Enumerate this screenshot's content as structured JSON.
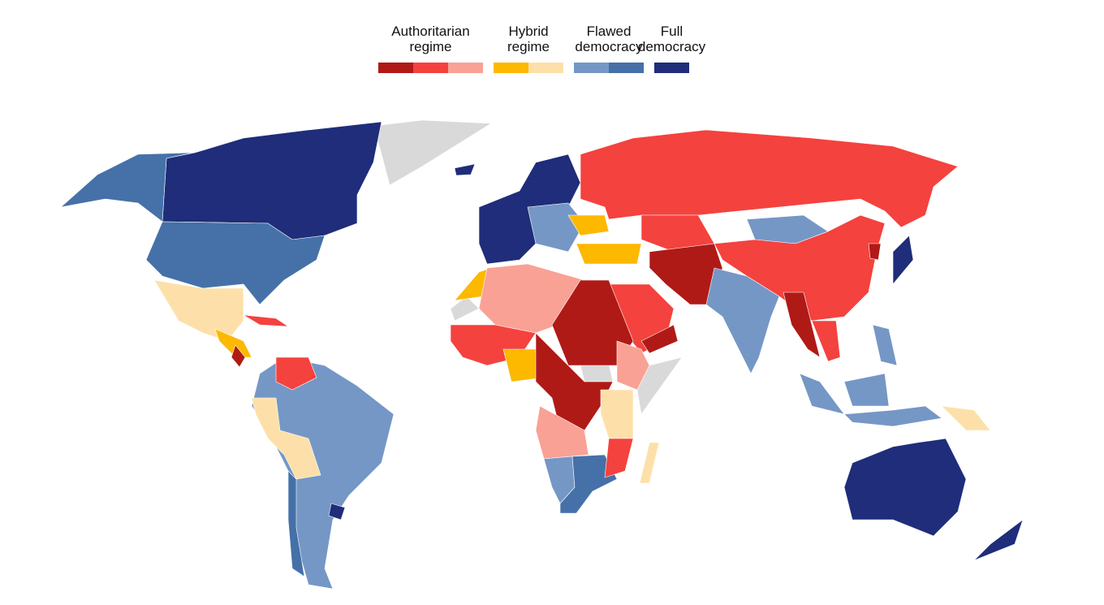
{
  "legend": {
    "groups": [
      {
        "label": [
          "Authoritarian",
          "regime"
        ],
        "colors": [
          "#b01a16",
          "#f4423e",
          "#f9a195"
        ]
      },
      {
        "label": [
          "Hybrid",
          "regime"
        ],
        "colors": [
          "#fdb800",
          "#fde0a9"
        ]
      },
      {
        "label": [
          "Flawed",
          "democracy"
        ],
        "colors": [
          "#7597c6",
          "#4571a8"
        ]
      },
      {
        "label": [
          "Full",
          "democracy"
        ],
        "colors": [
          "#1f2d7a"
        ]
      }
    ]
  }
}
